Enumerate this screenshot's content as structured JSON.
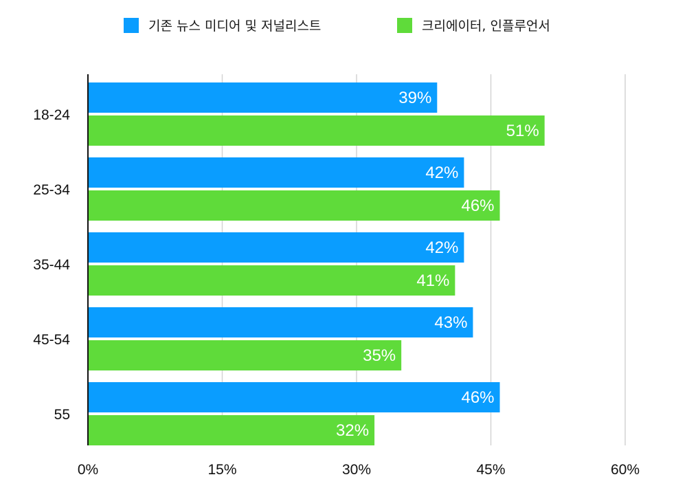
{
  "chart_data": {
    "type": "bar",
    "orientation": "horizontal",
    "categories": [
      "18-24",
      "25-34",
      "35-44",
      "45-54",
      "55"
    ],
    "series": [
      {
        "name": "기존 뉴스 미디어 및 저널리스트",
        "color": "#0a9dff",
        "values": [
          39,
          42,
          42,
          43,
          46
        ],
        "labels": [
          "39%",
          "42%",
          "42%",
          "43%",
          "46%"
        ]
      },
      {
        "name": "크리에이터, 인플루언서",
        "color": "#5fdb3a",
        "values": [
          51,
          46,
          41,
          35,
          32
        ],
        "labels": [
          "51%",
          "46%",
          "41%",
          "35%",
          "32%"
        ]
      }
    ],
    "xlim": [
      0,
      60
    ],
    "xticks": [
      0,
      15,
      30,
      45,
      60
    ],
    "xtick_labels": [
      "0%",
      "15%",
      "30%",
      "45%",
      "60%"
    ],
    "grid": "vertical",
    "legend": "top"
  }
}
